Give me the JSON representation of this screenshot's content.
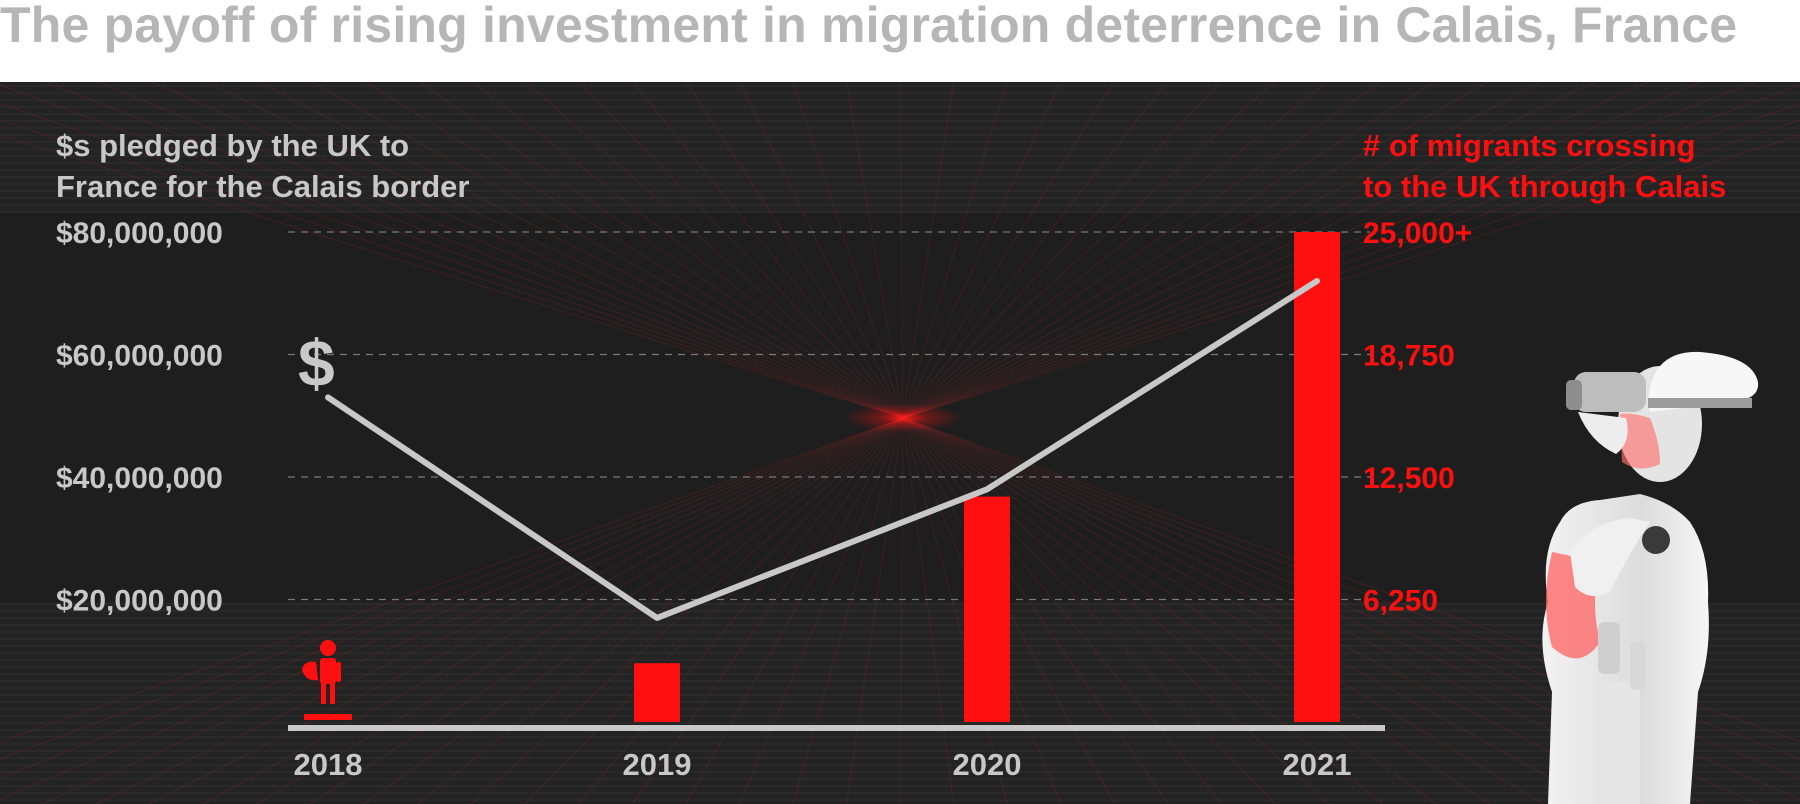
{
  "title": "The payoff of rising investment in migration deterrence in Calais, France",
  "colors": {
    "background": "#232323",
    "gray": "#c8c8c8",
    "red": "#ff1010",
    "title": "#b6b6b6"
  },
  "icons": {
    "dollar": "$",
    "migrant": "migrant-figure-icon",
    "soldier": "soldier-binoculars-icon"
  },
  "chart_data": {
    "type": "bar+line",
    "categories": [
      "2018",
      "2019",
      "2020",
      "2021"
    ],
    "left_axis": {
      "title_lines": [
        "$s pledged by the UK to",
        "France for the Calais border"
      ],
      "ticks": [
        {
          "value": 80000000,
          "label": "$80,000,000"
        },
        {
          "value": 60000000,
          "label": "$60,000,000"
        },
        {
          "value": 40000000,
          "label": "$40,000,000"
        },
        {
          "value": 20000000,
          "label": "$20,000,000"
        }
      ],
      "ylim": [
        0,
        80000000
      ]
    },
    "right_axis": {
      "title_lines": [
        "# of migrants crossing",
        "to the UK through Calais"
      ],
      "ticks": [
        {
          "value": 25000,
          "label": "25,000+"
        },
        {
          "value": 18750,
          "label": "18,750"
        },
        {
          "value": 12500,
          "label": "12,500"
        },
        {
          "value": 6250,
          "label": "6,250"
        }
      ],
      "ylim": [
        0,
        25000
      ]
    },
    "series": [
      {
        "name": "$s pledged by the UK to France for the Calais border",
        "kind": "line",
        "axis": "left",
        "color": "#c8c8c8",
        "values": [
          53000000,
          17000000,
          38000000,
          72000000
        ]
      },
      {
        "name": "# of migrants crossing to the UK through Calais",
        "kind": "bar",
        "axis": "right",
        "color": "#ff1010",
        "values": [
          300,
          3000,
          11500,
          25000
        ]
      }
    ],
    "grid": "dashed horizontal",
    "legend": "none"
  }
}
